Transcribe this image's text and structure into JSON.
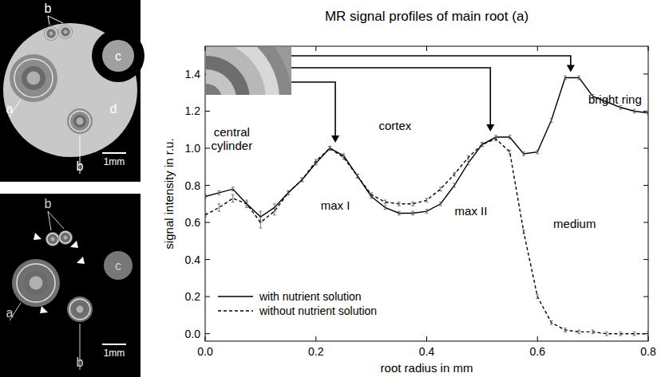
{
  "chart_data": {
    "type": "line",
    "title": "MR signal profiles of main root (a)",
    "x_label": "root radius in mm",
    "y_label": "signal intensity in r.u.",
    "x": [
      0,
      0.025,
      0.05,
      0.075,
      0.1,
      0.125,
      0.15,
      0.175,
      0.2,
      0.225,
      0.25,
      0.275,
      0.3,
      0.325,
      0.35,
      0.375,
      0.4,
      0.425,
      0.45,
      0.475,
      0.5,
      0.525,
      0.55,
      0.575,
      0.6,
      0.625,
      0.65,
      0.675,
      0.7,
      0.725,
      0.75,
      0.775,
      0.8
    ],
    "series": [
      {
        "name": "with nutrient solution",
        "color": "#000000",
        "line_style": "solid",
        "values": [
          0.74,
          0.76,
          0.78,
          0.7,
          0.63,
          0.68,
          0.76,
          0.83,
          0.92,
          1.0,
          0.96,
          0.85,
          0.74,
          0.68,
          0.65,
          0.65,
          0.66,
          0.7,
          0.8,
          0.92,
          1.02,
          1.06,
          1.06,
          0.97,
          0.98,
          1.15,
          1.38,
          1.38,
          1.28,
          1.25,
          1.22,
          1.2,
          1.19
        ],
        "errors": [
          0.01,
          0.01,
          0.01,
          0.01,
          0.03,
          0.02,
          0.01,
          0.01,
          0.01,
          0.01,
          0.01,
          0.01,
          0.01,
          0.01,
          0.01,
          0.01,
          0.01,
          0.01,
          0.01,
          0.01,
          0.01,
          0.01,
          0.01,
          0.01,
          0.01,
          0.01,
          0.01,
          0.01,
          0.01,
          0.01,
          0.01,
          0.01,
          0.01
        ]
      },
      {
        "name": "without nutrient solution",
        "color": "#000000",
        "line_style": "dashed",
        "values": [
          0.64,
          0.68,
          0.73,
          0.7,
          0.6,
          0.66,
          0.76,
          0.83,
          0.93,
          1.0,
          0.95,
          0.85,
          0.75,
          0.71,
          0.7,
          0.7,
          0.72,
          0.78,
          0.86,
          0.95,
          1.02,
          1.05,
          0.98,
          0.55,
          0.2,
          0.06,
          0.02,
          0.01,
          0.01,
          0.0,
          0.0,
          0.0,
          0.0
        ],
        "errors": [
          0.01,
          0.02,
          0.02,
          0.02,
          0.03,
          0.02,
          0.01,
          0.01,
          0.01,
          0.01,
          0.01,
          0.01,
          0.01,
          0.01,
          0.01,
          0.01,
          0.01,
          0.01,
          0.01,
          0.01,
          0.01,
          0.01,
          0.01,
          0.01,
          0.01,
          0.01,
          0.01,
          0.01,
          0.01,
          0.01,
          0.01,
          0.01,
          0.01
        ]
      }
    ],
    "xlim": [
      0,
      0.8
    ],
    "ylim": [
      -0.04,
      1.55
    ],
    "xticks": [
      {
        "value": 0,
        "label": "0.0"
      },
      0.2,
      0.4,
      0.6,
      0.8
    ],
    "yticks": [
      {
        "value": 0,
        "label": "0.0"
      },
      0.2,
      0.4,
      0.6,
      0.8,
      {
        "value": 1,
        "label": "1.0"
      },
      1.2,
      1.4
    ],
    "legend": "lower left",
    "annotations": [
      {
        "text": "central cylinder",
        "x": 0.048,
        "y": 1.05
      },
      {
        "text": "cortex",
        "x": 0.343,
        "y": 1.12
      },
      {
        "text": "medium",
        "x": 0.667,
        "y": 0.59
      },
      {
        "text": "bright ring",
        "x": 0.74,
        "y": 1.26
      },
      {
        "text": "max I",
        "x": 0.235,
        "y": 0.69
      },
      {
        "text": "max II",
        "x": 0.48,
        "y": 0.66
      }
    ],
    "arrows": [
      {
        "x": 0.235,
        "y": 1.03
      },
      {
        "x": 0.515,
        "y": 1.09
      },
      {
        "x": 0.66,
        "y": 1.41
      }
    ]
  },
  "panels": [
    {
      "labels": [
        "b",
        "a",
        "c",
        "d",
        "b"
      ],
      "scale_bar": "1mm"
    },
    {
      "labels": [
        "b",
        "a",
        "c",
        "b"
      ],
      "scale_bar": "1mm"
    }
  ]
}
